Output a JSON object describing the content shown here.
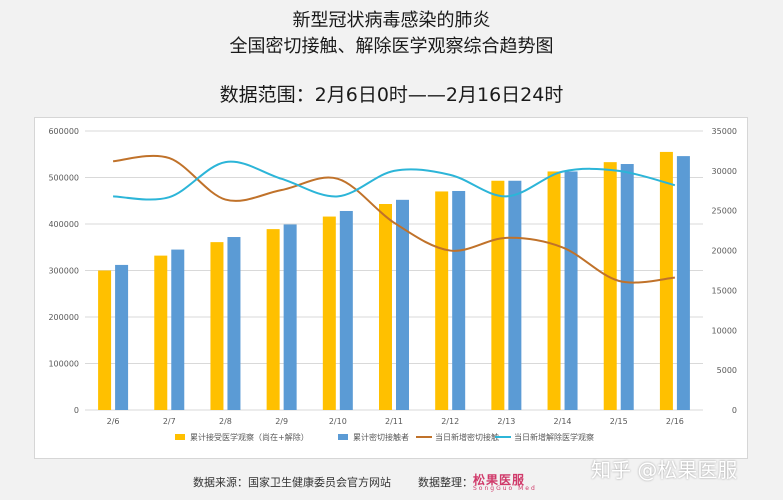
{
  "title_lines": [
    "新型冠状病毒感染的肺炎",
    "全国密切接触、解除医学观察综合趋势图"
  ],
  "range_text": "数据范围：2月6日0时——2月16日24时",
  "footer": {
    "source": "数据来源：国家卫生健康委员会官方网站",
    "organizer": "数据整理：",
    "logo_text": "松果医服",
    "logo_sub": "SongGuo Med"
  },
  "watermark": "知乎 @松果医服",
  "colors": {
    "bar_gold": "#ffc000",
    "bar_blue": "#5b9bd5",
    "line_orange": "#c0722a",
    "line_cyan": "#2cb5d8",
    "grid": "#d9d9d9",
    "axis_text": "#595959"
  },
  "chart_data": {
    "type": "bar",
    "categories": [
      "2/6",
      "2/7",
      "2/8",
      "2/9",
      "2/10",
      "2/11",
      "2/12",
      "2/13",
      "2/14",
      "2/15",
      "2/16"
    ],
    "ylim": [
      0,
      600000
    ],
    "yticks": [
      "0",
      "100000",
      "200000",
      "300000",
      "400000",
      "500000",
      "600000"
    ],
    "y2lim": [
      0,
      35000
    ],
    "y2ticks": [
      "0",
      "5000",
      "10000",
      "15000",
      "20000",
      "25000",
      "30000",
      "35000"
    ],
    "grid": true,
    "legend_position": "bottom",
    "series": [
      {
        "name": "累计接受医学观察（尚在+解除）",
        "type": "bar",
        "axis": "left",
        "values": [
          300000,
          332000,
          361000,
          389000,
          416000,
          443000,
          470000,
          493000,
          513000,
          533000,
          555000
        ]
      },
      {
        "name": "累计密切接触者",
        "type": "bar",
        "axis": "left",
        "values": [
          312000,
          345000,
          372000,
          399000,
          428000,
          452000,
          471000,
          493000,
          513000,
          529000,
          546000
        ]
      },
      {
        "name": "当日新增密切接触",
        "type": "line",
        "axis": "right",
        "values": [
          31200,
          31600,
          26400,
          27600,
          29000,
          23500,
          20000,
          21600,
          20400,
          16200,
          16600
        ]
      },
      {
        "name": "当日新增解除医学观察",
        "type": "line",
        "axis": "right",
        "values": [
          26800,
          26700,
          31100,
          29000,
          26800,
          30000,
          29500,
          26800,
          29900,
          30000,
          28200
        ]
      }
    ]
  }
}
